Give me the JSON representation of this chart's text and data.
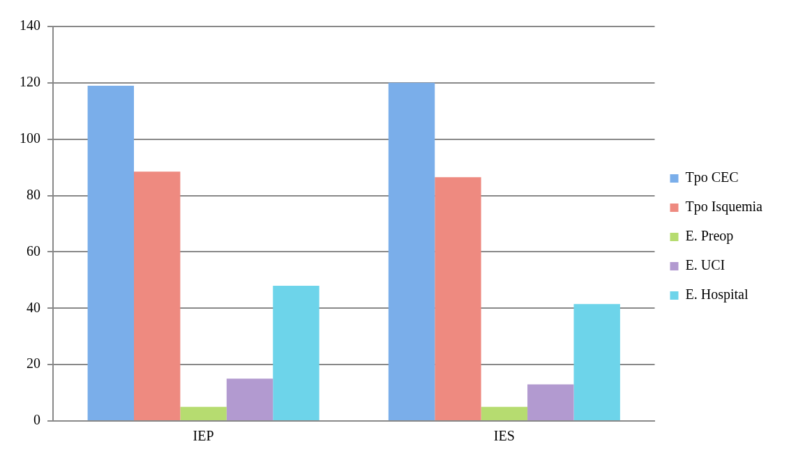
{
  "chart_data": {
    "type": "bar",
    "categories": [
      "IEP",
      "IES"
    ],
    "series": [
      {
        "name": "Tpo CEC",
        "color": "#7aaeea",
        "values": [
          119,
          120
        ]
      },
      {
        "name": "Tpo Isquemia",
        "color": "#ee8a80",
        "values": [
          88.5,
          86.5
        ]
      },
      {
        "name": "E. Preop",
        "color": "#b6dc70",
        "values": [
          5,
          5
        ]
      },
      {
        "name": "E. UCI",
        "color": "#b29ad0",
        "values": [
          15,
          13
        ]
      },
      {
        "name": "E. Hospital",
        "color": "#6dd4ea",
        "values": [
          48,
          41.5
        ]
      }
    ],
    "ylim": [
      0,
      140
    ],
    "yticks": [
      0,
      20,
      40,
      60,
      80,
      100,
      120,
      140
    ],
    "grid": "y",
    "legend": "right"
  }
}
